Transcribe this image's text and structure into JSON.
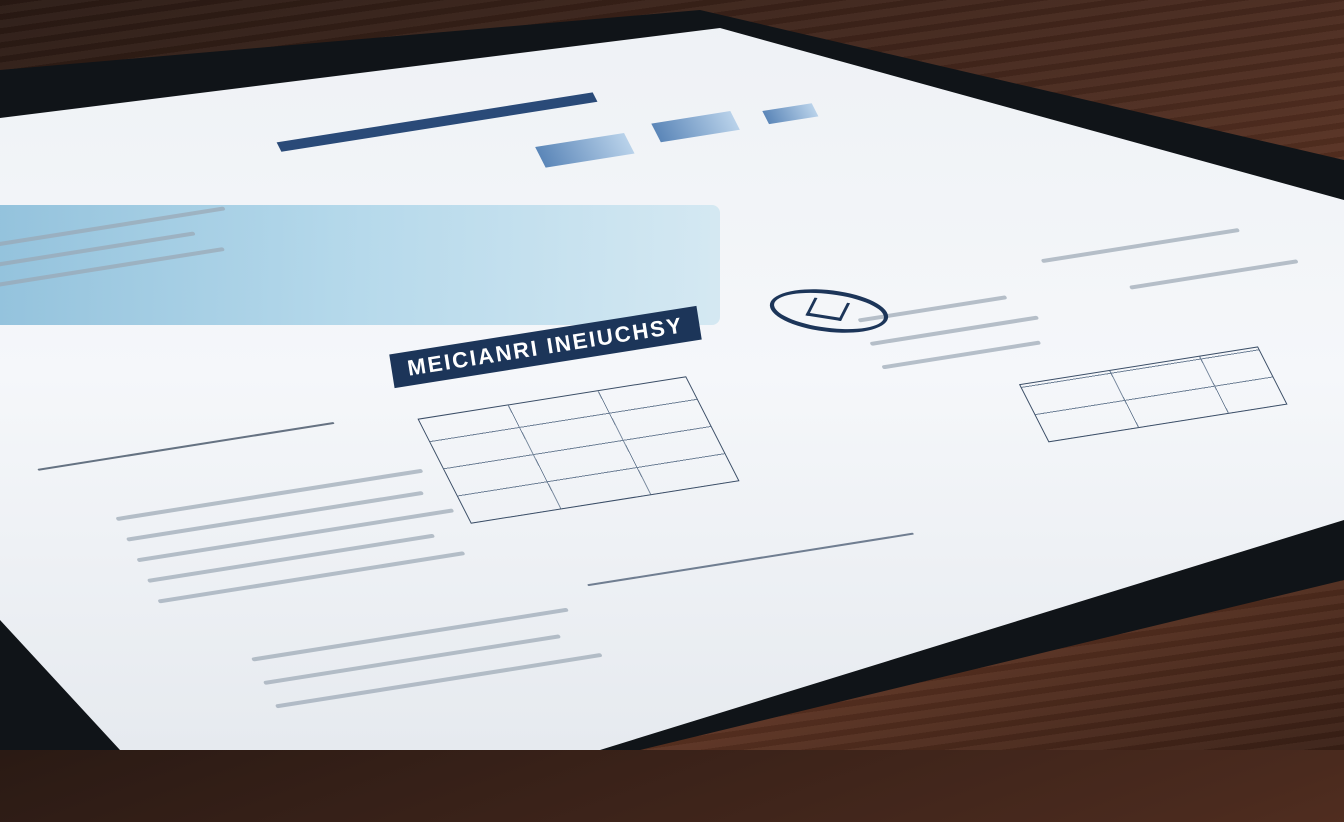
{
  "scene": {
    "colors": {
      "navy": "#1c3559",
      "map_blue": "#7fb7d6",
      "paper": "#f5f7fa",
      "wood": "#4a2a1e"
    }
  },
  "document": {
    "headline": "MEICIANRI INEIUCHSY",
    "logo_icon": "circle-emblem-icon"
  }
}
